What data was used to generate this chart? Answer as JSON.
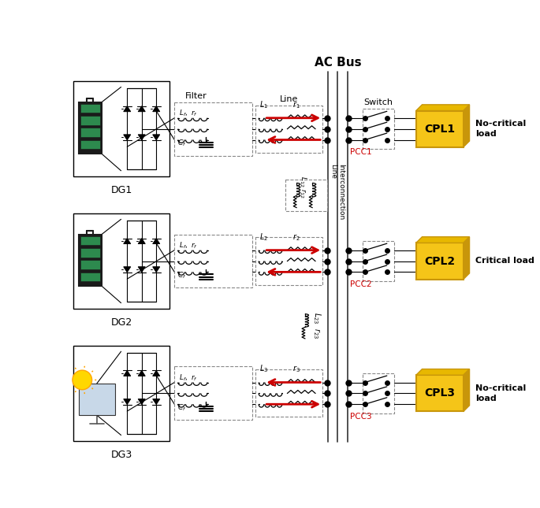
{
  "title": "AC Bus",
  "dg_labels": [
    "DG1",
    "DG2",
    "DG3"
  ],
  "pcc_labels": [
    "PCC1",
    "PCC2",
    "PCC3"
  ],
  "cpl_labels": [
    "CPL1",
    "CPL2",
    "CPL3"
  ],
  "load_labels": [
    "No-critical\nload",
    "Critical load",
    "No-critical\nload"
  ],
  "bg_color": "#ffffff",
  "arrow_color": "#cc0000",
  "pcc_color": "#cc0000",
  "cpl_fill": "#f5c518",
  "cpl_edge": "#c8960a",
  "filter_label": "Filter",
  "line_label": "Line",
  "switch_label": "Switch"
}
